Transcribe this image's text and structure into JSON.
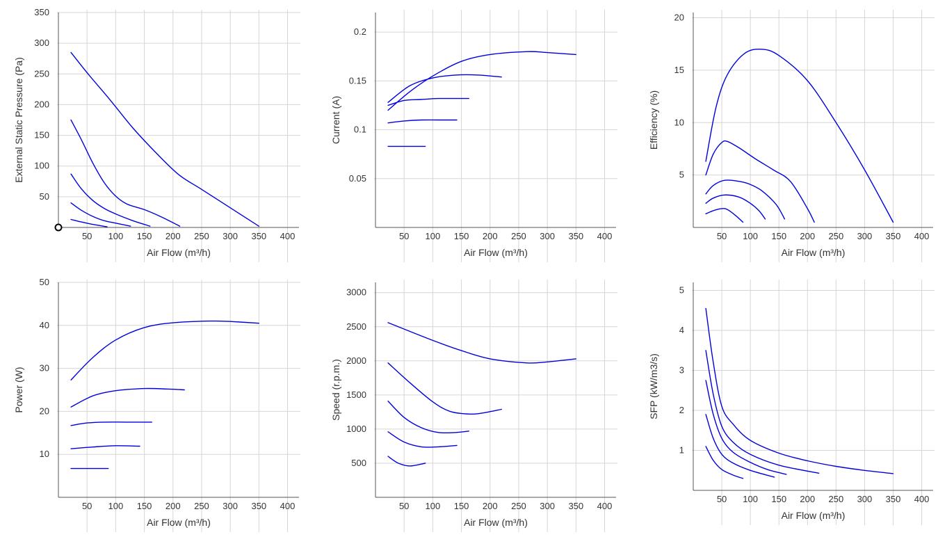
{
  "colors": {
    "series": "#0000dd",
    "grid": "#d6d6d6",
    "axis": "#555555",
    "text": "#333333"
  },
  "chart_data": [
    {
      "type": "line",
      "xlabel": "Air Flow (m³/h)",
      "ylabel": "External Static Pressure (Pa)",
      "xlim": [
        0,
        420
      ],
      "ylim": [
        0,
        350
      ],
      "xticks": [
        50,
        100,
        150,
        200,
        250,
        300,
        350,
        400
      ],
      "yticks": [
        50,
        100,
        150,
        200,
        250,
        300,
        350
      ],
      "grid": true,
      "marker": {
        "x": 0,
        "y": 0,
        "shape": "circle"
      },
      "series": [
        {
          "x": [
            22,
            50,
            90,
            130,
            170,
            210,
            250,
            300,
            350
          ],
          "y": [
            285,
            252,
            208,
            162,
            122,
            86,
            62,
            32,
            2
          ]
        },
        {
          "x": [
            22,
            40,
            60,
            80,
            100,
            120,
            150,
            180,
            212
          ],
          "y": [
            175,
            143,
            105,
            73,
            51,
            38,
            29,
            17,
            2
          ]
        },
        {
          "x": [
            22,
            40,
            60,
            80,
            100,
            130,
            160
          ],
          "y": [
            87,
            63,
            44,
            31,
            22,
            11,
            2
          ]
        },
        {
          "x": [
            22,
            40,
            60,
            80,
            100,
            126
          ],
          "y": [
            40,
            28,
            18,
            11,
            7,
            2
          ]
        },
        {
          "x": [
            22,
            40,
            60,
            85
          ],
          "y": [
            13,
            9,
            5,
            1
          ]
        }
      ]
    },
    {
      "type": "line",
      "xlabel": "Air Flow (m³/h)",
      "ylabel": "Current (A)",
      "xlim": [
        0,
        420
      ],
      "ylim": [
        0,
        0.22
      ],
      "xticks": [
        50,
        100,
        150,
        200,
        250,
        300,
        350,
        400
      ],
      "yticks": [
        0.05,
        0.1,
        0.15,
        0.2
      ],
      "ytick_labels": [
        "0.05",
        "0.1",
        "0.15",
        "0.2"
      ],
      "grid": true,
      "series": [
        {
          "x": [
            22,
            60,
            100,
            150,
            200,
            265,
            300,
            350
          ],
          "y": [
            0.12,
            0.139,
            0.155,
            0.17,
            0.177,
            0.18,
            0.179,
            0.177
          ]
        },
        {
          "x": [
            22,
            60,
            100,
            140,
            180,
            220
          ],
          "y": [
            0.128,
            0.145,
            0.153,
            0.156,
            0.156,
            0.154
          ]
        },
        {
          "x": [
            22,
            50,
            80,
            110,
            140,
            163
          ],
          "y": [
            0.125,
            0.13,
            0.131,
            0.132,
            0.132,
            0.132
          ]
        },
        {
          "x": [
            22,
            50,
            80,
            110,
            142
          ],
          "y": [
            0.107,
            0.109,
            0.11,
            0.11,
            0.11
          ]
        },
        {
          "x": [
            22,
            50,
            87
          ],
          "y": [
            0.083,
            0.083,
            0.083
          ]
        }
      ]
    },
    {
      "type": "line",
      "xlabel": "Air Flow (m³/h)",
      "ylabel": "Efficiency (%)",
      "xlim": [
        0,
        420
      ],
      "ylim": [
        0,
        20.5
      ],
      "xticks": [
        50,
        100,
        150,
        200,
        250,
        300,
        350,
        400
      ],
      "yticks": [
        5,
        10,
        15,
        20
      ],
      "grid": true,
      "series": [
        {
          "x": [
            22,
            40,
            60,
            90,
            120,
            150,
            200,
            250,
            300,
            350
          ],
          "y": [
            6.3,
            11.5,
            14.6,
            16.6,
            17.0,
            16.4,
            14.0,
            10.0,
            5.5,
            0.5
          ]
        },
        {
          "x": [
            22,
            35,
            50,
            60,
            80,
            110,
            140,
            170,
            200,
            212
          ],
          "y": [
            5.0,
            7.0,
            8.1,
            8.2,
            7.6,
            6.5,
            5.5,
            4.4,
            1.8,
            0.5
          ]
        },
        {
          "x": [
            22,
            35,
            55,
            80,
            100,
            120,
            145,
            160
          ],
          "y": [
            3.2,
            4.0,
            4.5,
            4.4,
            4.1,
            3.5,
            2.2,
            0.8
          ]
        },
        {
          "x": [
            22,
            35,
            55,
            80,
            100,
            115,
            126
          ],
          "y": [
            2.3,
            2.8,
            3.1,
            2.9,
            2.3,
            1.6,
            0.8
          ]
        },
        {
          "x": [
            22,
            35,
            50,
            60,
            75,
            87
          ],
          "y": [
            1.3,
            1.6,
            1.8,
            1.7,
            1.1,
            0.5
          ]
        }
      ]
    },
    {
      "type": "line",
      "xlabel": "Air Flow (m³/h)",
      "ylabel": "Power (W)",
      "xlim": [
        0,
        420
      ],
      "ylim": [
        0,
        50
      ],
      "xticks": [
        50,
        100,
        150,
        200,
        250,
        300,
        350,
        400
      ],
      "yticks": [
        10,
        20,
        30,
        40,
        50
      ],
      "grid": true,
      "series": [
        {
          "x": [
            22,
            60,
            100,
            150,
            200,
            265,
            300,
            350
          ],
          "y": [
            27.3,
            32.5,
            36.6,
            39.5,
            40.6,
            41.0,
            40.9,
            40.5
          ]
        },
        {
          "x": [
            22,
            60,
            100,
            150,
            190,
            220
          ],
          "y": [
            21.0,
            23.6,
            24.8,
            25.3,
            25.2,
            25.0
          ]
        },
        {
          "x": [
            22,
            50,
            80,
            120,
            163
          ],
          "y": [
            16.7,
            17.3,
            17.5,
            17.5,
            17.5
          ]
        },
        {
          "x": [
            22,
            60,
            100,
            142
          ],
          "y": [
            11.3,
            11.7,
            12.0,
            11.9
          ]
        },
        {
          "x": [
            22,
            50,
            87
          ],
          "y": [
            6.7,
            6.7,
            6.7
          ]
        }
      ]
    },
    {
      "type": "line",
      "xlabel": "Air Flow (m³/h)",
      "ylabel": "Speed (r.p.m.)",
      "xlim": [
        0,
        420
      ],
      "ylim": [
        0,
        3150
      ],
      "xticks": [
        50,
        100,
        150,
        200,
        250,
        300,
        350,
        400
      ],
      "yticks": [
        500,
        1000,
        1500,
        2000,
        2500,
        3000
      ],
      "grid": true,
      "series": [
        {
          "x": [
            22,
            100,
            150,
            200,
            265,
            300,
            350
          ],
          "y": [
            2560,
            2300,
            2150,
            2030,
            1970,
            1985,
            2030
          ]
        },
        {
          "x": [
            22,
            60,
            100,
            130,
            165,
            190,
            220
          ],
          "y": [
            1970,
            1680,
            1400,
            1260,
            1220,
            1240,
            1290
          ]
        },
        {
          "x": [
            22,
            50,
            80,
            110,
            140,
            163
          ],
          "y": [
            1410,
            1170,
            1020,
            950,
            950,
            970
          ]
        },
        {
          "x": [
            22,
            50,
            80,
            110,
            142
          ],
          "y": [
            960,
            810,
            740,
            740,
            760
          ]
        },
        {
          "x": [
            22,
            40,
            60,
            87
          ],
          "y": [
            600,
            500,
            460,
            500
          ]
        }
      ]
    },
    {
      "type": "line",
      "xlabel": "Air Flow (m³/h)",
      "ylabel": "SFP (kW/m3/s)",
      "xlim": [
        0,
        420
      ],
      "ylim": [
        0,
        5.2
      ],
      "xticks": [
        50,
        100,
        150,
        200,
        250,
        300,
        350,
        400
      ],
      "yticks": [
        1,
        2,
        3,
        4,
        5
      ],
      "grid": true,
      "series": [
        {
          "x": [
            22,
            35,
            50,
            70,
            100,
            150,
            200,
            250,
            300,
            350
          ],
          "y": [
            4.55,
            3.2,
            2.1,
            1.65,
            1.25,
            0.93,
            0.74,
            0.6,
            0.5,
            0.42
          ]
        },
        {
          "x": [
            22,
            35,
            50,
            70,
            100,
            150,
            220
          ],
          "y": [
            3.5,
            2.4,
            1.6,
            1.2,
            0.9,
            0.63,
            0.43
          ]
        },
        {
          "x": [
            22,
            35,
            50,
            70,
            100,
            130,
            163
          ],
          "y": [
            2.75,
            1.9,
            1.3,
            0.95,
            0.7,
            0.52,
            0.4
          ]
        },
        {
          "x": [
            22,
            35,
            50,
            70,
            100,
            142
          ],
          "y": [
            1.9,
            1.3,
            0.9,
            0.68,
            0.5,
            0.33
          ]
        },
        {
          "x": [
            22,
            35,
            50,
            70,
            87
          ],
          "y": [
            1.1,
            0.75,
            0.52,
            0.38,
            0.3
          ]
        }
      ]
    }
  ]
}
